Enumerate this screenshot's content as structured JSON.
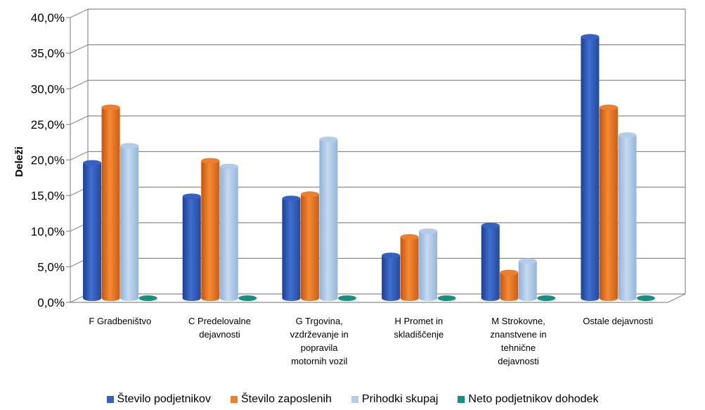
{
  "chart_data": {
    "type": "bar",
    "ylabel": "Deleži",
    "ylim": [
      0,
      40
    ],
    "y_ticks": [
      "0,0%",
      "5,0%",
      "10,0%",
      "15,0%",
      "20,0%",
      "25,0%",
      "30,0%",
      "35,0%",
      "40,0%"
    ],
    "categories": [
      [
        "F Gradbeništvo"
      ],
      [
        "C Predelovalne",
        "dejavnosti"
      ],
      [
        "G Trgovina,",
        "vzdrževanje in",
        "popravila",
        "motornih vozil"
      ],
      [
        "H Promet in",
        "skladiščenje"
      ],
      [
        "M Strokovne,",
        "znanstvene in",
        "tehnične",
        "dejavnosti"
      ],
      [
        "Ostale dejavnosti"
      ]
    ],
    "series": [
      {
        "name": "Število podjetnikov",
        "color": "#3361C4",
        "values": [
          19.0,
          14.3,
          14.0,
          6.0,
          10.2,
          36.7
        ]
      },
      {
        "name": "Število zaposlenih",
        "color": "#F07F2C",
        "values": [
          26.8,
          19.3,
          14.6,
          8.6,
          3.6,
          26.8
        ]
      },
      {
        "name": "Prihodki skupaj",
        "color": "#B3CCE8",
        "values": [
          21.4,
          18.5,
          22.3,
          9.4,
          5.2,
          22.9
        ]
      },
      {
        "name": "Neto podjetnikov dohodek",
        "color": "#13927F",
        "values": [
          0.0,
          0.0,
          0.0,
          0.0,
          0.0,
          0.0
        ]
      }
    ],
    "grid": true,
    "legend_position": "bottom"
  }
}
